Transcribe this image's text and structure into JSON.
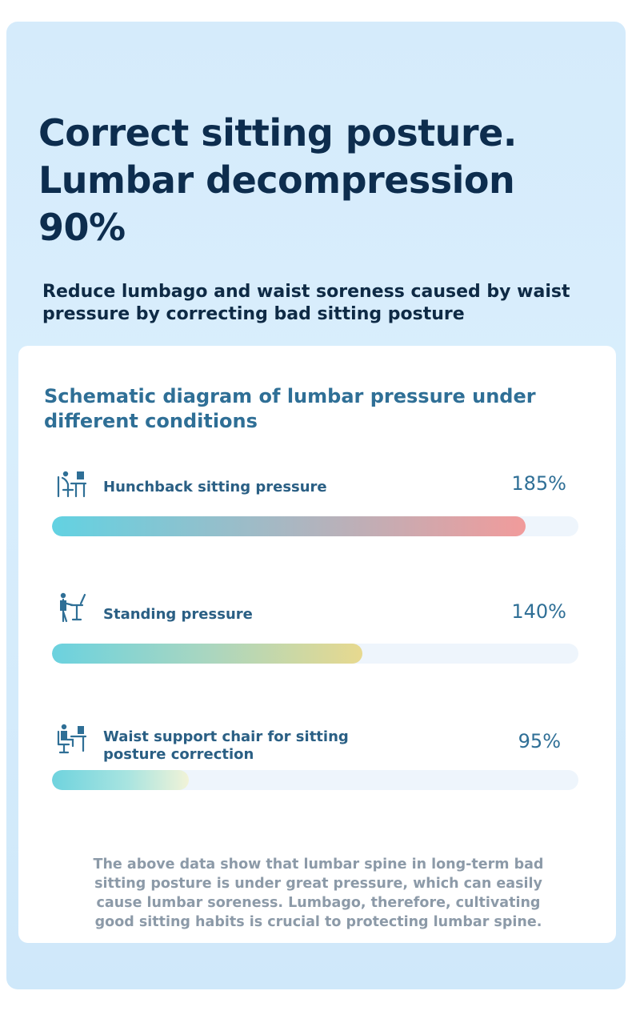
{
  "header": {
    "title": "Correct sitting posture. Lumbar decompression 90%",
    "subtitle": "Reduce lumbago and waist soreness caused by waist pressure by correcting bad sitting posture"
  },
  "card": {
    "title": "Schematic diagram of lumbar pressure under different conditions",
    "rows": [
      {
        "icon": "hunched-sitting-at-desk-icon",
        "label": "Hunchback sitting pressure",
        "value": "185%",
        "fill_fraction": 0.9
      },
      {
        "icon": "standing-at-desk-icon",
        "label": "Standing pressure",
        "value": "140%",
        "fill_fraction": 0.59
      },
      {
        "icon": "upright-sitting-chair-icon",
        "label": "Waist support chair for sitting posture correction",
        "value": "95%",
        "fill_fraction": 0.26
      }
    ],
    "note": "The above data show that lumbar spine in long-term bad sitting posture is under great pressure, which can easily cause lumbar soreness. Lumbago, therefore, cultivating good sitting habits is crucial to protecting lumbar spine."
  },
  "colors": {
    "title": "#0d2d4e",
    "accent": "#2f6f96",
    "bar_start": "#62d2e2",
    "bar1_end": "#f19b9b",
    "bar2_end": "#e7d98f",
    "bar3_end": "#f1f3d8"
  }
}
